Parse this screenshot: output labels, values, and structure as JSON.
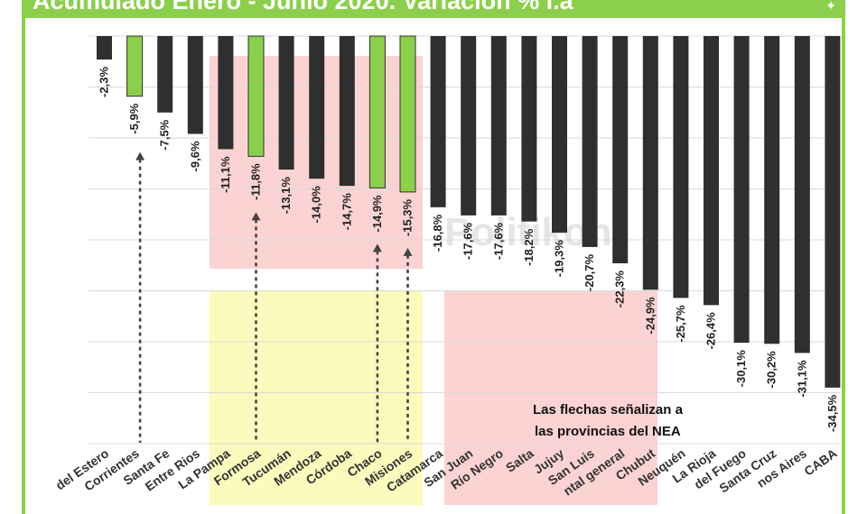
{
  "header": {
    "title": "Acumulado Enero - Junio 2020. Variación % i.a",
    "logo_icon": "map-icon"
  },
  "colors": {
    "accent": "#8ccf4d",
    "bar_dark": "#2f2f2f",
    "bar_green": "#8ccf4d",
    "highlight_red": "#fbd3d3",
    "highlight_yellow": "#fbfbbd"
  },
  "watermark": "Politikon",
  "note": {
    "line1": "Las flechas señalizan a",
    "line2": "las provincias del NEA"
  },
  "chart_data": {
    "type": "bar",
    "title": "Acumulado Enero - Junio 2020. Variación % i.a",
    "categories": [
      "del Estero",
      "Corrientes",
      "Santa Fe",
      "Entre Rios",
      "La Pampa",
      "Formosa",
      "Tucumán",
      "Mendoza",
      "Córdoba",
      "Chaco",
      "Misiones",
      "Catamarca",
      "San Juan",
      "Río Negro",
      "Salta",
      "Jujuy",
      "San Luis",
      "ntal general",
      "Chubut",
      "Neuquén",
      "La Rioja",
      "del Fuego",
      "Santa Cruz",
      "nos Aires",
      "CABA"
    ],
    "values": [
      -2.3,
      -5.9,
      -7.5,
      -9.6,
      -11.1,
      -11.8,
      -13.1,
      -14.0,
      -14.7,
      -14.9,
      -15.3,
      -16.8,
      -17.6,
      -17.6,
      -18.2,
      -19.3,
      -20.7,
      -22.3,
      -24.9,
      -25.7,
      -26.4,
      -30.1,
      -30.2,
      -31.1,
      -34.5
    ],
    "value_labels": [
      "-2,3%",
      "-5,9%",
      "-7,5%",
      "-9,6%",
      "-11,1%",
      "-11,8%",
      "-13,1%",
      "-14,0%",
      "-14,7%",
      "-14,9%",
      "-15,3%",
      "-16,8%",
      "-17,6%",
      "-17,6%",
      "-18,2%",
      "-19,3%",
      "-20,7%",
      "-22,3%",
      "-24,9%",
      "-25,7%",
      "-26,4%",
      "-30,1%",
      "-30,2%",
      "-31,1%",
      "-34,5%"
    ],
    "highlight_green": [
      "Corrientes",
      "Formosa",
      "Chaco",
      "Misiones"
    ],
    "arrows_nea": [
      "Corrientes",
      "Formosa",
      "Chaco",
      "Misiones"
    ],
    "ylim": [
      -40,
      0
    ],
    "grid": true,
    "xlabel": "",
    "ylabel": ""
  }
}
